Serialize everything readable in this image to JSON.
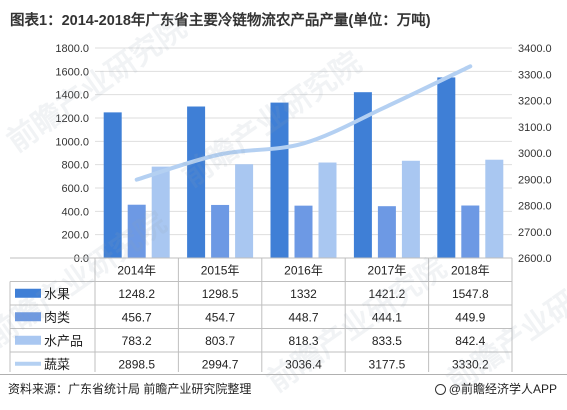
{
  "title": "图表1：2014-2018年广东省主要冷链物流农产品产量(单位：万吨)",
  "chart_data": {
    "type": "bar",
    "categories": [
      "2014年",
      "2015年",
      "2016年",
      "2017年",
      "2018年"
    ],
    "series": [
      {
        "name": "水果",
        "values": [
          1248.2,
          1298.5,
          1332.0,
          1421.2,
          1547.8
        ],
        "color": "#3f7fd6",
        "axis": "left",
        "kind": "bar",
        "display": [
          "1248.2",
          "1298.5",
          "1332",
          "1421.2",
          "1547.8"
        ]
      },
      {
        "name": "肉类",
        "values": [
          456.7,
          454.7,
          448.7,
          444.1,
          449.9
        ],
        "color": "#6d99e4",
        "axis": "left",
        "kind": "bar",
        "display": [
          "456.7",
          "454.7",
          "448.7",
          "444.1",
          "449.9"
        ]
      },
      {
        "name": "水产品",
        "values": [
          783.2,
          803.7,
          818.3,
          833.5,
          842.4
        ],
        "color": "#a9c7f1",
        "axis": "left",
        "kind": "bar",
        "display": [
          "783.2",
          "803.7",
          "818.3",
          "833.5",
          "842.4"
        ]
      },
      {
        "name": "蔬菜",
        "values": [
          2898.5,
          2994.7,
          3036.4,
          3177.5,
          3330.2
        ],
        "color": "#b4d0f2",
        "axis": "right",
        "kind": "line",
        "display": [
          "2898.5",
          "2994.7",
          "3036.4",
          "3177.5",
          "3330.2"
        ]
      }
    ],
    "y_left": {
      "min": 0,
      "max": 1800,
      "step": 200,
      "ticks": [
        "0.0",
        "200.0",
        "400.0",
        "600.0",
        "800.0",
        "1000.0",
        "1200.0",
        "1400.0",
        "1600.0",
        "1800.0"
      ]
    },
    "y_right": {
      "min": 2600,
      "max": 3400,
      "step": 100,
      "ticks": [
        "2600.0",
        "2700.0",
        "2800.0",
        "2900.0",
        "3000.0",
        "3100.0",
        "3200.0",
        "3300.0",
        "3400.0"
      ]
    },
    "grid": true,
    "legend": "data-table-below"
  },
  "footer": {
    "source": "资料来源：广东省统计局 前瞻产业研究院整理",
    "brand": "@前瞻经济学人APP"
  },
  "watermarks": [
    "前瞻产业研究院",
    "前瞻产业研究院",
    "前瞻产业研究院",
    "前瞻产业研究院",
    "前瞻产业研究院"
  ]
}
